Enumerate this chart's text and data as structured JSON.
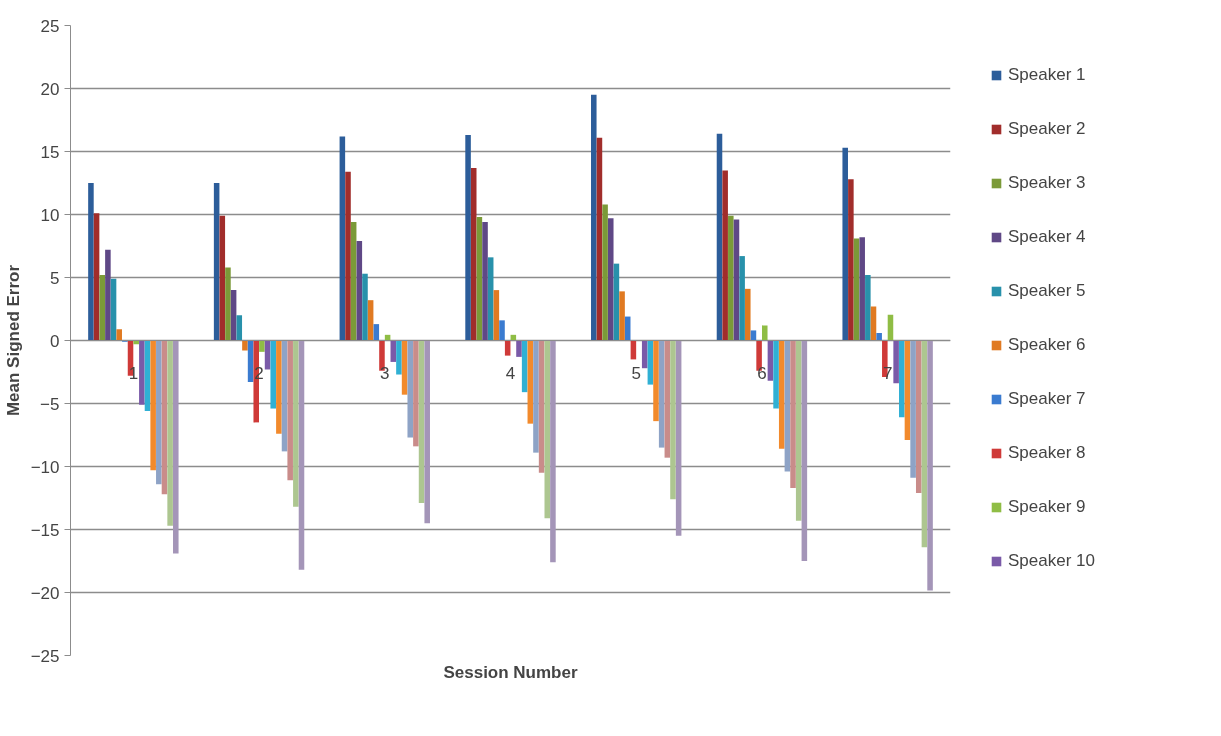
{
  "chart_data": {
    "type": "bar",
    "xlabel": "Session Number",
    "ylabel": "Mean Signed Error",
    "categories": [
      "1",
      "2",
      "3",
      "4",
      "5",
      "6",
      "7"
    ],
    "ylim": [
      -25,
      25
    ],
    "yticks": [
      -25,
      -20,
      -15,
      -10,
      -5,
      0,
      5,
      10,
      15,
      20,
      25
    ],
    "grid": "y",
    "legend": "right",
    "series": [
      {
        "name": "Speaker 1",
        "color": "#2c5d9a",
        "values": [
          12.5,
          12.5,
          16.2,
          16.3,
          19.5,
          16.4,
          15.3
        ]
      },
      {
        "name": "Speaker 2",
        "color": "#a12d2b",
        "values": [
          10.1,
          9.9,
          13.4,
          13.7,
          16.1,
          13.5,
          12.8
        ]
      },
      {
        "name": "Speaker 3",
        "color": "#7b9a38",
        "values": [
          5.2,
          5.8,
          9.4,
          9.8,
          10.8,
          9.9,
          8.1
        ]
      },
      {
        "name": "Speaker 4",
        "color": "#5f4886",
        "values": [
          7.2,
          4.0,
          7.9,
          9.4,
          9.7,
          9.6,
          8.2
        ]
      },
      {
        "name": "Speaker 5",
        "color": "#2891ab",
        "values": [
          4.9,
          2.0,
          5.3,
          6.6,
          6.1,
          6.7,
          5.2
        ]
      },
      {
        "name": "Speaker 6",
        "color": "#e07a22",
        "values": [
          0.9,
          -0.8,
          3.2,
          4.0,
          3.9,
          4.1,
          2.7
        ]
      },
      {
        "name": "Speaker 7",
        "color": "#3a7bd0",
        "values": [
          -0.1,
          -3.3,
          1.3,
          1.6,
          1.9,
          0.8,
          0.6
        ]
      },
      {
        "name": "Speaker 8",
        "color": "#cf3a38",
        "values": [
          -2.8,
          -6.5,
          -2.4,
          -1.2,
          -1.5,
          -2.4,
          -2.9
        ]
      },
      {
        "name": "Speaker 9",
        "color": "#8fbd45",
        "values": [
          -0.3,
          -0.9,
          0.45,
          0.45,
          0,
          1.2,
          2.05
        ]
      },
      {
        "name": "Speaker 10",
        "color": "#7a5aa8",
        "values": [
          -5.1,
          -2.3,
          -1.7,
          -1.3,
          -2.2,
          -3.2,
          -3.4
        ]
      },
      {
        "color": "#30b0d4",
        "values": [
          -5.6,
          -5.4,
          -2.7,
          -4.1,
          -3.5,
          -5.4,
          -6.1
        ]
      },
      {
        "color": "#f28a2c",
        "values": [
          -10.3,
          -7.4,
          -4.3,
          -6.6,
          -6.4,
          -8.6,
          -7.9
        ]
      },
      {
        "color": "#8ea3c6",
        "values": [
          -11.4,
          -8.8,
          -7.7,
          -8.9,
          -8.5,
          -10.4,
          -10.9
        ]
      },
      {
        "color": "#c98c8a",
        "values": [
          -12.2,
          -11.1,
          -8.4,
          -10.5,
          -9.3,
          -11.7,
          -12.1
        ]
      },
      {
        "color": "#adc690",
        "values": [
          -14.7,
          -13.2,
          -12.9,
          -14.1,
          -12.6,
          -14.3,
          -16.4
        ]
      },
      {
        "color": "#a495b8",
        "values": [
          -16.9,
          -18.2,
          -14.5,
          -17.6,
          -15.5,
          -17.5,
          -19.85
        ]
      }
    ]
  }
}
